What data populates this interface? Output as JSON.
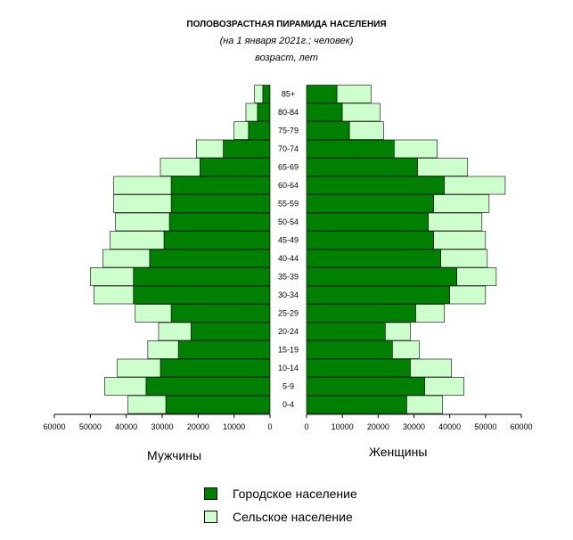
{
  "chart_data": {
    "type": "bar",
    "title": "ПОЛОВОЗРАСТНАЯ ПИРАМИДА НАСЕЛЕНИЯ",
    "subtitle": "(на 1 января 2021г.; человек)",
    "ylabel": "возраст, лет",
    "categories": [
      "0-4",
      "5-9",
      "10-14",
      "15-19",
      "20-24",
      "25-29",
      "30-34",
      "35-39",
      "40-44",
      "45-49",
      "50-54",
      "55-59",
      "60-64",
      "65-69",
      "70-74",
      "75-79",
      "80-84",
      "85+"
    ],
    "xlim": [
      0,
      60000
    ],
    "left_ticks": [
      "60000",
      "50000",
      "40000",
      "30000",
      "20000",
      "10000",
      "0"
    ],
    "right_ticks": [
      "0",
      "10000",
      "20000",
      "30000",
      "40000",
      "50000",
      "60000"
    ],
    "men": {
      "label": "Мужчины",
      "urban": [
        29000,
        34500,
        30500,
        25500,
        22000,
        27500,
        38000,
        38000,
        33500,
        29500,
        28000,
        27500,
        27500,
        19500,
        13000,
        6000,
        3500,
        2000
      ],
      "rural": [
        10500,
        11500,
        12000,
        8500,
        9000,
        10000,
        11000,
        12000,
        13000,
        15000,
        15000,
        16000,
        16000,
        11000,
        7500,
        4000,
        3200,
        2300
      ]
    },
    "women": {
      "label": "Женщины",
      "urban": [
        28000,
        33000,
        29000,
        24000,
        22000,
        30500,
        40000,
        42000,
        37500,
        35500,
        34000,
        35500,
        38500,
        31000,
        24500,
        12000,
        10000,
        8500
      ],
      "rural": [
        10000,
        11000,
        11500,
        7500,
        7000,
        8000,
        10000,
        11000,
        13000,
        14500,
        15000,
        15500,
        17000,
        14000,
        12000,
        9500,
        10500,
        9500
      ]
    },
    "legend": {
      "urban": "Городское население",
      "rural": "Сельское население"
    },
    "colors": {
      "urban": "#008000",
      "rural": "#ccffcc"
    },
    "grid": false,
    "legend_position": "bottom"
  }
}
